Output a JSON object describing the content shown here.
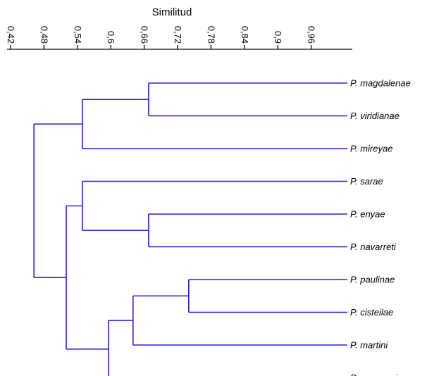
{
  "axis": {
    "title": "Similitud",
    "range": [
      0.42,
      1.0
    ],
    "ticks": [
      {
        "value": 0.42,
        "label": "0,42"
      },
      {
        "value": 0.48,
        "label": "0,48"
      },
      {
        "value": 0.54,
        "label": "0,54"
      },
      {
        "value": 0.6,
        "label": "0,6"
      },
      {
        "value": 0.66,
        "label": "0,66"
      },
      {
        "value": 0.72,
        "label": "0,72"
      },
      {
        "value": 0.78,
        "label": "0,78"
      },
      {
        "value": 0.84,
        "label": "0,84"
      },
      {
        "value": 0.9,
        "label": "0,9"
      },
      {
        "value": 0.96,
        "label": "0,96"
      }
    ]
  },
  "leaves": [
    "P. magdalenae",
    "P. viridianae",
    "P. mireyae",
    "P. sarae",
    "P. enyae",
    "P. navarreti",
    "P. paulinae",
    "P. cisteilae",
    "P. martini",
    "P. geovanni"
  ],
  "merges": [
    {
      "id": "n1",
      "children": [
        "P. magdalenae",
        "P. viridianae"
      ],
      "similarity": 0.668
    },
    {
      "id": "n2",
      "children": [
        "n1",
        "P. mireyae"
      ],
      "similarity": 0.549
    },
    {
      "id": "n3",
      "children": [
        "P. enyae",
        "P. navarreti"
      ],
      "similarity": 0.668
    },
    {
      "id": "n4",
      "children": [
        "P. sarae",
        "n3"
      ],
      "similarity": 0.549
    },
    {
      "id": "n5",
      "children": [
        "P. paulinae",
        "P. cisteilae"
      ],
      "similarity": 0.74
    },
    {
      "id": "n6",
      "children": [
        "n5",
        "P. martini"
      ],
      "similarity": 0.64
    },
    {
      "id": "n7",
      "children": [
        "n6",
        "P. geovanni"
      ],
      "similarity": 0.596
    },
    {
      "id": "n8",
      "children": [
        "n4",
        "n7"
      ],
      "similarity": 0.52
    },
    {
      "id": "n9",
      "children": [
        "n2",
        "n8"
      ],
      "similarity": 0.462
    }
  ],
  "colors": {
    "branch": "#2b1fd6",
    "axis": "#000000"
  }
}
